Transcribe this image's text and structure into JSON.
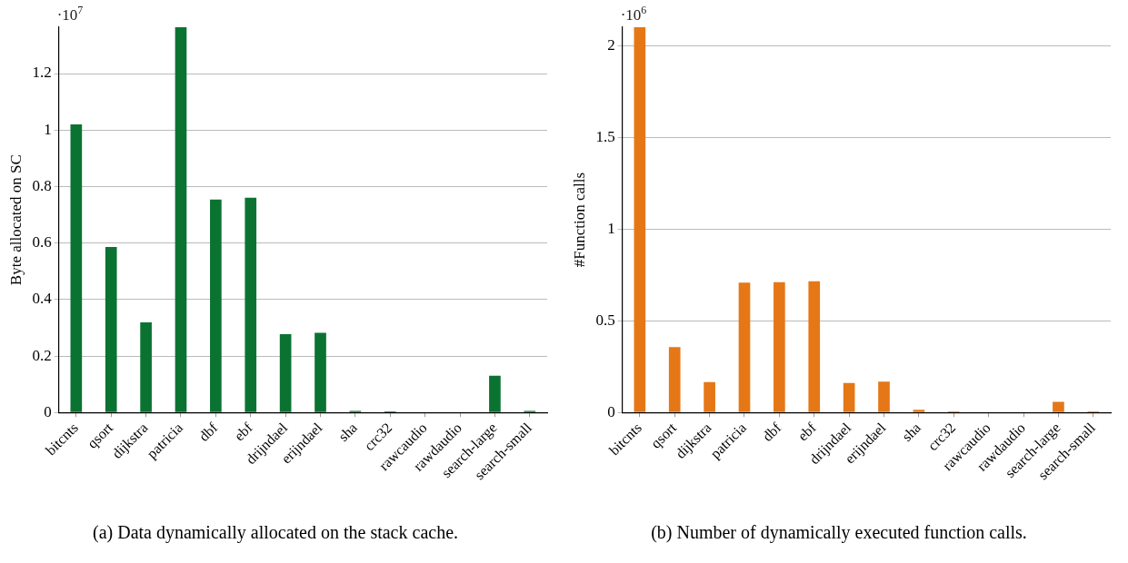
{
  "chart_data": [
    {
      "type": "bar",
      "title": "(a) Data dynamically allocated on the stack cache.",
      "ylabel": "Byte allocated on SC",
      "annotations": [
        "·10$^{7}$"
      ],
      "categories": [
        "bitcnts",
        "qsort",
        "dijkstra",
        "patricia",
        "dbf",
        "ebf",
        "drijndael",
        "erijndael",
        "sha",
        "crc32",
        "rawcaudio",
        "rawdaudio",
        "search-large",
        "search-small"
      ],
      "values": [
        1.02,
        0.586,
        0.319,
        1.364,
        0.754,
        0.76,
        0.277,
        0.282,
        0.006,
        0.004,
        null,
        null,
        0.13,
        0.006
      ],
      "color": "#0b7331",
      "ylim": [
        0,
        1.364
      ],
      "yticks": [
        0,
        0.2,
        0.4,
        0.6,
        0.8,
        1,
        1.2
      ],
      "grid": "y"
    },
    {
      "type": "bar",
      "title": "(b) Number of dynamically executed function calls.",
      "ylabel": "#Function calls",
      "annotations": [
        "·10$^{6}$"
      ],
      "categories": [
        "bitcnts",
        "qsort",
        "dijkstra",
        "patricia",
        "dbf",
        "ebf",
        "drijndael",
        "erijndael",
        "sha",
        "crc32",
        "rawcaudio",
        "rawdaudio",
        "search-large",
        "search-small"
      ],
      "values": [
        2.1,
        0.357,
        0.166,
        0.708,
        0.71,
        0.715,
        0.161,
        0.168,
        0.015,
        0.006,
        null,
        null,
        0.058,
        0.006
      ],
      "color": "#e57716",
      "ylim": [
        0,
        2.1
      ],
      "yticks": [
        0,
        0.5,
        1,
        1.5,
        2
      ],
      "grid": "y"
    }
  ]
}
